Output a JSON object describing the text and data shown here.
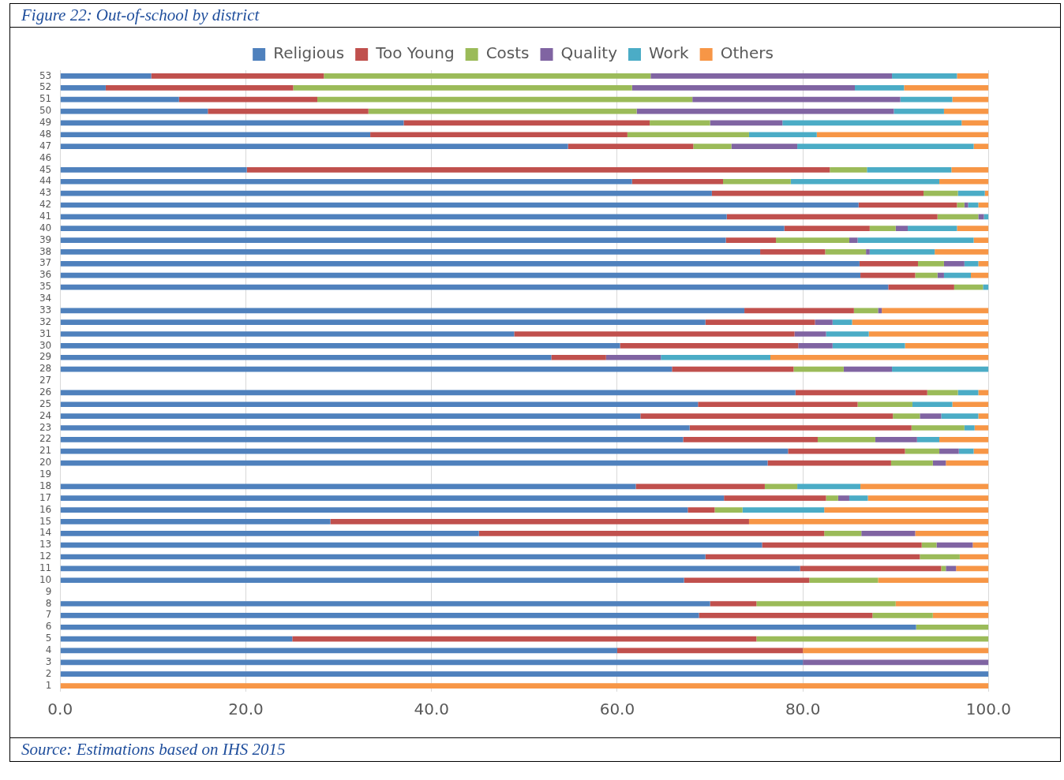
{
  "chart_data": {
    "type": "bar",
    "title": "Figure 22: Out-of-school by district",
    "orientation": "horizontal",
    "stacked": true,
    "grid": "x",
    "legend": "top",
    "categories": [
      "53",
      "52",
      "51",
      "50",
      "49",
      "48",
      "47",
      "46",
      "45",
      "44",
      "43",
      "42",
      "41",
      "40",
      "39",
      "38",
      "37",
      "36",
      "35",
      "34",
      "33",
      "32",
      "31",
      "30",
      "29",
      "28",
      "27",
      "26",
      "25",
      "24",
      "23",
      "22",
      "21",
      "20",
      "19",
      "18",
      "17",
      "16",
      "15",
      "14",
      "13",
      "12",
      "11",
      "10",
      "9",
      "8",
      "7",
      "6",
      "5",
      "4",
      "3",
      "2",
      "1"
    ],
    "xlim": [
      0,
      100
    ],
    "xticks": [
      {
        "value": 0,
        "label": "0.0"
      },
      {
        "value": 20,
        "label": "20.0"
      },
      {
        "value": 40,
        "label": "40.0"
      },
      {
        "value": 60,
        "label": "60.0"
      },
      {
        "value": 80,
        "label": "80.0"
      },
      {
        "value": 100,
        "label": "100.0"
      }
    ],
    "series": [
      {
        "name": "Religious",
        "color": "#4f81bd",
        "values": [
          9.8,
          4.9,
          12.8,
          15.9,
          37.0,
          33.4,
          54.7,
          null,
          20.1,
          61.6,
          70.2,
          86.0,
          71.8,
          78.0,
          71.7,
          75.4,
          86.1,
          86.2,
          89.2,
          null,
          73.7,
          69.5,
          48.9,
          60.3,
          52.9,
          65.9,
          null,
          79.2,
          68.7,
          62.5,
          67.8,
          67.1,
          78.4,
          76.2,
          null,
          62.0,
          71.5,
          67.6,
          29.1,
          45.1,
          75.6,
          69.5,
          79.7,
          67.2,
          null,
          70,
          68.8,
          92.2,
          25,
          60,
          80,
          100,
          0
        ]
      },
      {
        "name": "Too Young",
        "color": "#c0504d",
        "values": [
          18.6,
          20.2,
          14.9,
          17.3,
          26.5,
          27.7,
          13.5,
          null,
          62.8,
          9.8,
          22.8,
          10.6,
          22.7,
          9.2,
          5.4,
          7.0,
          6.3,
          5.9,
          7.1,
          null,
          11.8,
          11.8,
          30.2,
          19.2,
          5.9,
          13.1,
          null,
          14.2,
          17.2,
          27.2,
          23.9,
          14.5,
          12.6,
          13.3,
          null,
          13.9,
          11.0,
          2.9,
          45.1,
          37.2,
          17.2,
          23.1,
          15.2,
          13.5,
          null,
          5,
          18.7,
          0,
          50,
          20,
          0,
          0,
          0
        ]
      },
      {
        "name": "Costs",
        "color": "#9bbb59",
        "values": [
          35.2,
          36.5,
          40.4,
          28.9,
          6.5,
          13.1,
          4.1,
          null,
          4.0,
          7.3,
          3.7,
          0.8,
          4.4,
          2.8,
          7.9,
          4.4,
          2.8,
          2.4,
          3.1,
          null,
          2.6,
          0,
          0,
          0,
          0,
          5.4,
          null,
          3.3,
          5.9,
          2.9,
          5.7,
          6.2,
          3.7,
          4.5,
          null,
          3.5,
          1.3,
          3.0,
          0,
          4.0,
          1.6,
          4.3,
          0.5,
          7.4,
          null,
          15,
          6.5,
          7.8,
          25,
          0,
          0,
          0,
          0
        ]
      },
      {
        "name": "Quality",
        "color": "#8064a2",
        "values": [
          26.0,
          24.0,
          22.4,
          27.7,
          7.8,
          0,
          7.1,
          null,
          0,
          0,
          0,
          0.4,
          0.6,
          1.3,
          0.9,
          0.4,
          2.2,
          0.7,
          0,
          null,
          0.4,
          1.9,
          3.4,
          3.7,
          5.9,
          5.2,
          null,
          0,
          0,
          2.3,
          0,
          4.5,
          2.1,
          1.4,
          null,
          0,
          1.2,
          0,
          0,
          5.8,
          3.9,
          0,
          1.1,
          0,
          null,
          0,
          0,
          0,
          0,
          0,
          20,
          0,
          0
        ]
      },
      {
        "name": "Work",
        "color": "#4bacc6",
        "values": [
          7.0,
          5.3,
          5.6,
          5.4,
          19.3,
          7.3,
          19.0,
          null,
          9.1,
          16.0,
          2.9,
          1.1,
          0.5,
          5.3,
          12.5,
          7.0,
          1.5,
          2.9,
          0.6,
          null,
          0,
          2.1,
          4.6,
          7.8,
          11.8,
          10.4,
          null,
          2.2,
          4.3,
          4.0,
          1.1,
          2.4,
          1.6,
          0,
          null,
          6.8,
          2.0,
          8.8,
          0,
          0,
          0,
          0,
          0,
          0,
          null,
          0,
          0,
          0,
          0,
          0,
          0,
          0,
          0
        ]
      },
      {
        "name": "Others",
        "color": "#f79646",
        "values": [
          3.4,
          9.1,
          3.9,
          4.8,
          2.9,
          18.5,
          1.6,
          null,
          4.0,
          5.3,
          0.4,
          1.1,
          0,
          3.4,
          1.6,
          5.8,
          1.1,
          1.9,
          0,
          null,
          11.5,
          14.7,
          12.9,
          9.0,
          23.5,
          0,
          null,
          1.1,
          3.9,
          1.1,
          1.5,
          5.3,
          1.6,
          4.6,
          null,
          13.8,
          13.0,
          17.7,
          25.8,
          7.9,
          1.7,
          3.1,
          3.5,
          11.9,
          null,
          10,
          6.0,
          0,
          0,
          20,
          0,
          0,
          100
        ]
      }
    ],
    "annotations": [
      "Source: Estimations based on IHS 2015"
    ]
  }
}
